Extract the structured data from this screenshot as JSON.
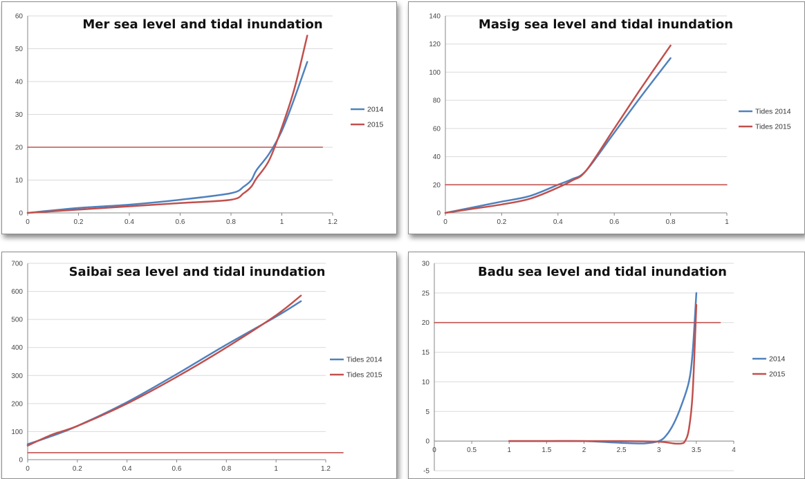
{
  "colors": {
    "series_a": "#4f81bd",
    "series_b": "#c0504d"
  },
  "chart_data": [
    {
      "type": "line",
      "title": "Mer sea level and tidal inundation",
      "xlim": [
        0,
        1.2
      ],
      "ylim": [
        0,
        60
      ],
      "x_ticks": [
        "0",
        "0.2",
        "0.4",
        "0.6",
        "0.8",
        "1",
        "1.2"
      ],
      "y_ticks": [
        "0",
        "10",
        "20",
        "30",
        "40",
        "50",
        "60"
      ],
      "grid": true,
      "legend_position": "right",
      "series": [
        {
          "name": "2014",
          "color": "#4f81bd",
          "x": [
            0,
            0.2,
            0.4,
            0.6,
            0.8,
            0.85,
            0.88,
            0.9,
            0.95,
            1.0,
            1.05,
            1.1
          ],
          "y": [
            0,
            1.5,
            2.5,
            4,
            6,
            8,
            10,
            13,
            18,
            25,
            35,
            46
          ]
        },
        {
          "name": "2015",
          "color": "#c0504d",
          "x": [
            0,
            0.2,
            0.4,
            0.6,
            0.8,
            0.85,
            0.88,
            0.9,
            0.95,
            1.0,
            1.05,
            1.1
          ],
          "y": [
            0,
            1,
            2,
            3,
            4,
            6,
            8,
            10.5,
            16,
            26,
            38,
            54
          ]
        },
        {
          "name": "",
          "color": "#c0504d",
          "x": [
            0,
            1.16
          ],
          "y": [
            20,
            20
          ]
        }
      ]
    },
    {
      "type": "line",
      "title": "Masig sea level and tidal inundation",
      "xlim": [
        0,
        1
      ],
      "ylim": [
        0,
        140
      ],
      "x_ticks": [
        "0",
        "0.2",
        "0.4",
        "0.6",
        "0.8",
        "1"
      ],
      "y_ticks": [
        "0",
        "20",
        "40",
        "60",
        "80",
        "100",
        "120",
        "140"
      ],
      "grid": true,
      "legend_position": "right",
      "series": [
        {
          "name": "Tides 2014",
          "color": "#4f81bd",
          "x": [
            0,
            0.1,
            0.2,
            0.3,
            0.4,
            0.45,
            0.5,
            0.6,
            0.7,
            0.8
          ],
          "y": [
            0,
            4,
            8,
            12,
            20,
            24,
            30,
            57,
            84,
            110
          ]
        },
        {
          "name": "Tides 2015",
          "color": "#c0504d",
          "x": [
            0,
            0.1,
            0.2,
            0.3,
            0.4,
            0.45,
            0.5,
            0.6,
            0.7,
            0.8
          ],
          "y": [
            0,
            3,
            6,
            10,
            18,
            23,
            30,
            60,
            90,
            119
          ]
        },
        {
          "name": "",
          "color": "#c0504d",
          "x": [
            0,
            1.0
          ],
          "y": [
            20,
            20
          ]
        }
      ]
    },
    {
      "type": "line",
      "title": "Saibai sea level and tidal inundation",
      "xlim": [
        0,
        1.2
      ],
      "ylim": [
        0,
        700
      ],
      "x_ticks": [
        "0",
        "0.2",
        "0.4",
        "0.6",
        "0.8",
        "1",
        "1.2"
      ],
      "y_ticks": [
        "0",
        "100",
        "200",
        "300",
        "400",
        "500",
        "600",
        "700"
      ],
      "grid": true,
      "legend_position": "right",
      "series": [
        {
          "name": "Tides 2014",
          "color": "#4f81bd",
          "x": [
            0,
            0.1,
            0.2,
            0.4,
            0.6,
            0.8,
            1.0,
            1.1
          ],
          "y": [
            55,
            85,
            120,
            205,
            305,
            410,
            510,
            565
          ]
        },
        {
          "name": "Tides 2015",
          "color": "#c0504d",
          "x": [
            0,
            0.1,
            0.2,
            0.4,
            0.6,
            0.8,
            1.0,
            1.1
          ],
          "y": [
            50,
            90,
            120,
            200,
            295,
            400,
            515,
            585
          ]
        },
        {
          "name": "",
          "color": "#c0504d",
          "x": [
            0,
            1.27
          ],
          "y": [
            25,
            25
          ]
        }
      ]
    },
    {
      "type": "line",
      "title": "Badu sea level and tidal inundation",
      "xlim": [
        0,
        4
      ],
      "ylim": [
        -5,
        30
      ],
      "x_axis_at_y": 0,
      "x_ticks": [
        "0",
        "0.5",
        "1",
        "1.5",
        "2",
        "2.5",
        "3",
        "3.5",
        "4"
      ],
      "y_ticks": [
        "-5",
        "0",
        "5",
        "10",
        "15",
        "20",
        "25",
        "30"
      ],
      "grid": true,
      "legend_position": "right",
      "series": [
        {
          "name": "2014",
          "color": "#4f81bd",
          "x": [
            1,
            1.5,
            2,
            2.5,
            2.8,
            3.0,
            3.1,
            3.2,
            3.3,
            3.4,
            3.45,
            3.5
          ],
          "y": [
            0,
            0,
            0,
            -0.3,
            -0.4,
            0,
            1,
            3,
            6,
            10,
            15,
            25
          ]
        },
        {
          "name": "2015",
          "color": "#c0504d",
          "x": [
            1,
            1.5,
            2,
            2.5,
            3.0,
            3.2,
            3.3,
            3.35,
            3.4,
            3.45,
            3.5
          ],
          "y": [
            0,
            0,
            0,
            0,
            -0.1,
            -0.4,
            -0.4,
            0,
            2,
            8,
            23
          ]
        },
        {
          "name": "",
          "color": "#c0504d",
          "x": [
            0,
            3.82
          ],
          "y": [
            20,
            20
          ]
        }
      ]
    }
  ]
}
